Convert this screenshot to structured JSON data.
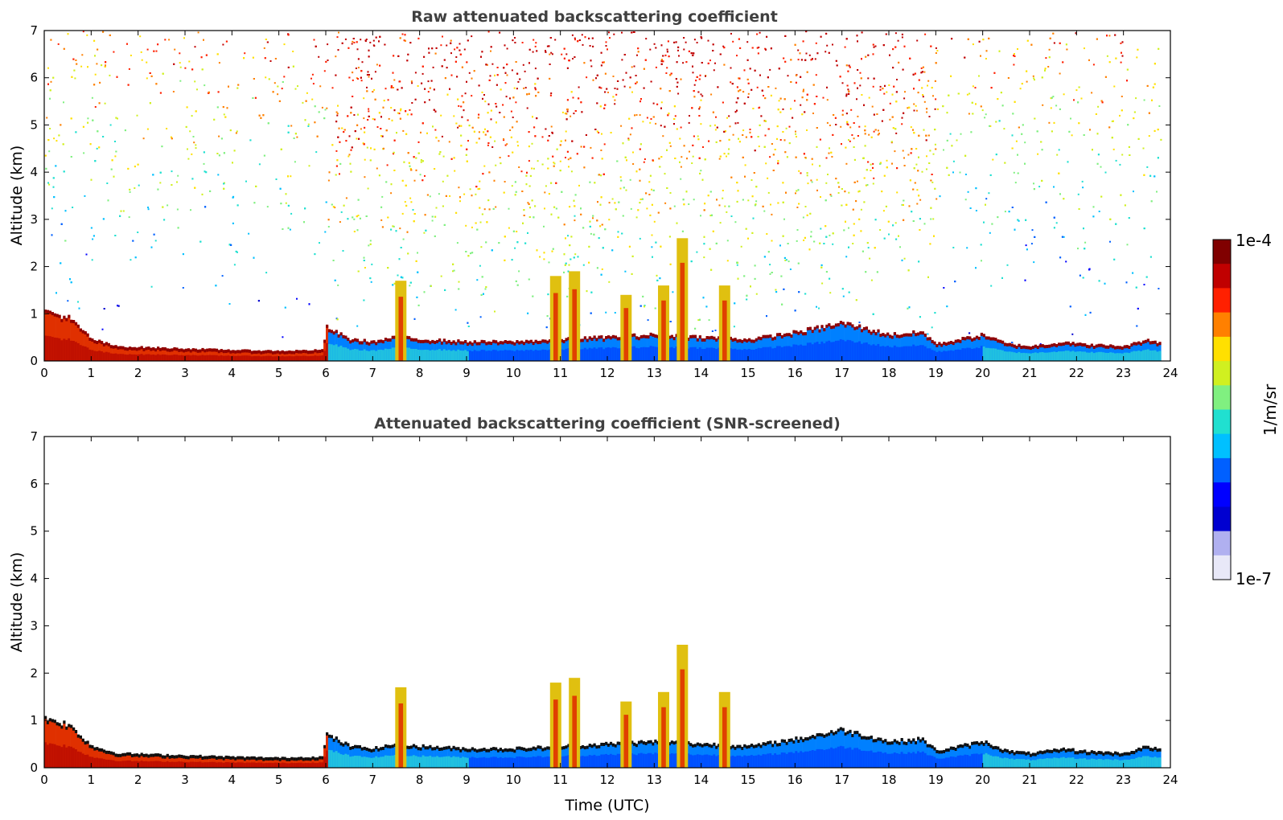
{
  "chart_data": [
    {
      "type": "heatmap",
      "title": "Raw attenuated backscattering coefficient",
      "xlabel": "",
      "ylabel": "Altitude (km)",
      "xlim": [
        0,
        24
      ],
      "ylim": [
        0,
        7
      ],
      "xticks": [
        "0",
        "1",
        "2",
        "3",
        "4",
        "5",
        "6",
        "7",
        "8",
        "9",
        "10",
        "11",
        "12",
        "13",
        "14",
        "15",
        "16",
        "17",
        "18",
        "19",
        "20",
        "21",
        "22",
        "23",
        "24"
      ],
      "yticks": [
        "0",
        "1",
        "2",
        "3",
        "4",
        "5",
        "6",
        "7"
      ],
      "data_end_hour": 23.8,
      "boundary_layer_top_km": [
        [
          0,
          1.05
        ],
        [
          0.5,
          0.9
        ],
        [
          1,
          0.45
        ],
        [
          1.5,
          0.3
        ],
        [
          2,
          0.28
        ],
        [
          3,
          0.25
        ],
        [
          4,
          0.22
        ],
        [
          5,
          0.2
        ],
        [
          5.9,
          0.22
        ],
        [
          6,
          0.7
        ],
        [
          6.5,
          0.45
        ],
        [
          7,
          0.4
        ],
        [
          7.5,
          0.5
        ],
        [
          8,
          0.45
        ],
        [
          9,
          0.4
        ],
        [
          10,
          0.4
        ],
        [
          11,
          0.45
        ],
        [
          12,
          0.5
        ],
        [
          13,
          0.55
        ],
        [
          14,
          0.5
        ],
        [
          15,
          0.45
        ],
        [
          16,
          0.6
        ],
        [
          17,
          0.8
        ],
        [
          18,
          0.55
        ],
        [
          18.7,
          0.6
        ],
        [
          19,
          0.35
        ],
        [
          20,
          0.55
        ],
        [
          20.5,
          0.35
        ],
        [
          21,
          0.3
        ],
        [
          21.8,
          0.4
        ],
        [
          22,
          0.35
        ],
        [
          23,
          0.3
        ],
        [
          23.5,
          0.45
        ],
        [
          23.8,
          0.35
        ]
      ],
      "plumes": [
        {
          "x": 7.6,
          "top_km": 1.7
        },
        {
          "x": 10.9,
          "top_km": 1.8
        },
        {
          "x": 11.3,
          "top_km": 1.9
        },
        {
          "x": 12.4,
          "top_km": 1.4
        },
        {
          "x": 13.2,
          "top_km": 1.6
        },
        {
          "x": 13.6,
          "top_km": 2.6
        },
        {
          "x": 14.5,
          "top_km": 1.6
        }
      ],
      "noise": "strong above boundary layer, strongest 6-19 UTC"
    },
    {
      "type": "heatmap",
      "title": "Attenuated backscattering coefficient (SNR-screened)",
      "xlabel": "Time (UTC)",
      "ylabel": "Altitude (km)",
      "xlim": [
        0,
        24
      ],
      "ylim": [
        0,
        7
      ],
      "xticks": [
        "0",
        "1",
        "2",
        "3",
        "4",
        "5",
        "6",
        "7",
        "8",
        "9",
        "10",
        "11",
        "12",
        "13",
        "14",
        "15",
        "16",
        "17",
        "18",
        "19",
        "20",
        "21",
        "22",
        "23",
        "24"
      ],
      "yticks": [
        "0",
        "1",
        "2",
        "3",
        "4",
        "5",
        "6",
        "7"
      ],
      "data_end_hour": 23.8,
      "noise": "screened out"
    }
  ],
  "colorbar": {
    "max_label": "1e-4",
    "min_label": "1e-7",
    "unit_label": "1/m/sr",
    "colors": [
      "#e8e8f8",
      "#b0b0f0",
      "#0000d0",
      "#0000ff",
      "#0060ff",
      "#00c0ff",
      "#20e0d0",
      "#80f080",
      "#d0f020",
      "#ffe000",
      "#ff8000",
      "#ff2000",
      "#c00000",
      "#800000"
    ]
  }
}
